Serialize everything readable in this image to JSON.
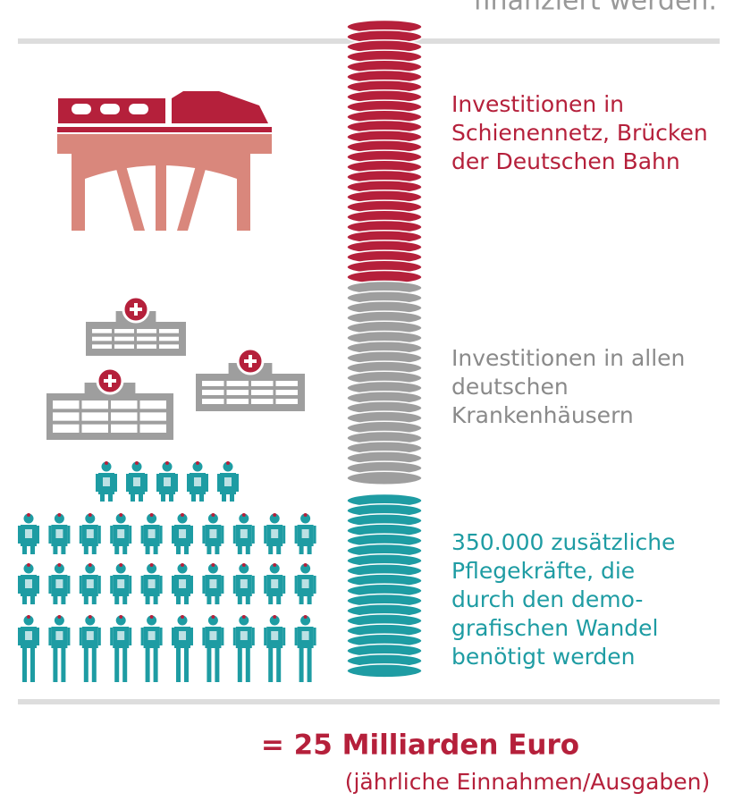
{
  "top_text": "finanziert werden.",
  "sections": [
    {
      "lines": [
        "Investitionen in",
        "Schienennetz, Brücken",
        "der Deutschen Bahn"
      ]
    },
    {
      "lines": [
        "Investitionen in allen",
        "deutschen",
        "Krankenhäusern"
      ]
    },
    {
      "lines": [
        "350.000 zusätzliche",
        "Pflegekräfte, die",
        "durch den demo-",
        "grafischen Wandel",
        "benötigt werden"
      ]
    }
  ],
  "total": "= 25 Milliarden Euro",
  "note": "(jährliche Einnahmen/Ausgaben)"
}
